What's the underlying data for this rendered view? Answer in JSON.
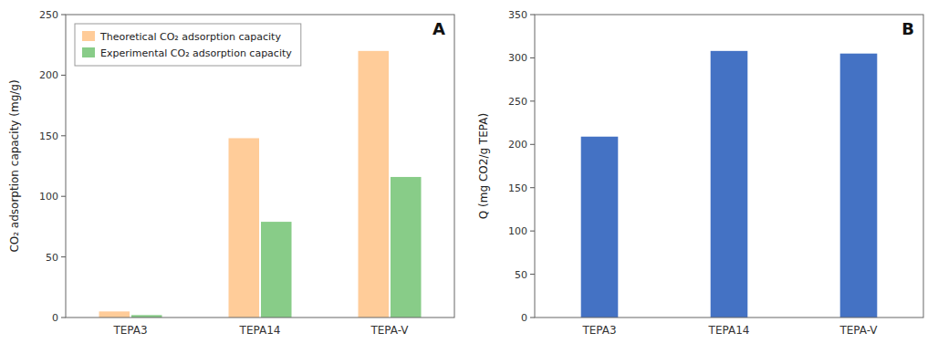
{
  "chart_data": [
    {
      "type": "bar",
      "categories": [
        "TEPA3",
        "TEPA14",
        "TEPA-V"
      ],
      "series": [
        {
          "name": "Theoretical CO₂ adsorption capacity",
          "color": "#FFCC99",
          "values": [
            5,
            148,
            220
          ]
        },
        {
          "name": "Experimental CO₂ adsorption capacity",
          "color": "#88CC88",
          "values": [
            2,
            79,
            116
          ]
        }
      ],
      "y_label": "CO₂ adsorption capacity (mg/g)",
      "ylim": [
        0,
        250
      ],
      "yticks": [
        0,
        50,
        100,
        150,
        200,
        250
      ],
      "legend": "upper left",
      "grid": false,
      "annotation": "A"
    },
    {
      "type": "bar",
      "categories": [
        "TEPA3",
        "TEPA14",
        "TEPA-V"
      ],
      "values": [
        209,
        308,
        305
      ],
      "color": "#4472C4",
      "y_label": "Q (mg CO2/g TEPA)",
      "ylim": [
        0,
        350
      ],
      "yticks": [
        0,
        50,
        100,
        150,
        200,
        250,
        300,
        350
      ],
      "grid": false,
      "annotation": "B"
    }
  ]
}
